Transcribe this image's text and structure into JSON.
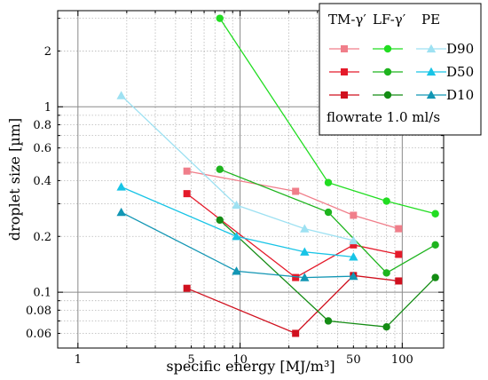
{
  "chart_data": {
    "type": "line",
    "xlabel": "specific energy [MJ/m³]",
    "ylabel": "droplet size [µm]",
    "x_scale": "log",
    "y_scale": "log",
    "xlim": [
      0.75,
      180
    ],
    "ylim": [
      0.05,
      3.3
    ],
    "grid": true,
    "x_major_ticks": [
      1,
      10,
      100
    ],
    "x_major_tick_labels": [
      "1",
      "10",
      "100"
    ],
    "x_minor_ticks": [
      2,
      3,
      4,
      5,
      6,
      7,
      8,
      9,
      20,
      30,
      40,
      50,
      60,
      70,
      80,
      90
    ],
    "x_minor_tick_labels": [
      "",
      "",
      "",
      "5",
      "",
      "",
      "",
      "",
      "",
      "",
      "",
      "50",
      "",
      "",
      "",
      ""
    ],
    "y_major_ticks": [
      0.1,
      1
    ],
    "y_minor_ticks": [
      0.06,
      0.08,
      0.2,
      0.4,
      0.6,
      0.8,
      2
    ],
    "y_tick_values": [
      0.06,
      0.08,
      0.1,
      0.2,
      0.4,
      0.6,
      0.8,
      1,
      2
    ],
    "y_tick_labels": [
      "0.06",
      "0.08",
      "0.1",
      "0.2",
      "0.4",
      "0.6",
      "0.8",
      "1",
      "2"
    ],
    "legend": {
      "placement": "top-right",
      "column_headers": [
        "TM-γ′",
        "LF-γ′",
        "PE"
      ],
      "row_labels": [
        "D90",
        "D50",
        "D10"
      ],
      "note": "flowrate 1.0 ml/s"
    },
    "series": [
      {
        "group": "TM-γ′",
        "stat": "D90",
        "color": "#f07e8a",
        "marker": "square",
        "x": [
          4.7,
          22,
          50,
          95
        ],
        "y": [
          0.45,
          0.35,
          0.26,
          0.22
        ]
      },
      {
        "group": "TM-γ′",
        "stat": "D50",
        "color": "#e41a2a",
        "marker": "square",
        "x": [
          4.7,
          22,
          50,
          95
        ],
        "y": [
          0.34,
          0.12,
          0.18,
          0.16
        ]
      },
      {
        "group": "TM-γ′",
        "stat": "D10",
        "color": "#d0101e",
        "marker": "square",
        "x": [
          4.7,
          22,
          50,
          95
        ],
        "y": [
          0.105,
          0.06,
          0.123,
          0.115
        ]
      },
      {
        "group": "LF-γ′",
        "stat": "D90",
        "color": "#22dd22",
        "marker": "circle",
        "x": [
          7.5,
          35,
          80,
          160
        ],
        "y": [
          3.0,
          0.39,
          0.31,
          0.265
        ]
      },
      {
        "group": "LF-γ′",
        "stat": "D50",
        "color": "#1eb41e",
        "marker": "circle",
        "x": [
          7.5,
          35,
          80,
          160
        ],
        "y": [
          0.46,
          0.27,
          0.127,
          0.18
        ]
      },
      {
        "group": "LF-γ′",
        "stat": "D10",
        "color": "#148c14",
        "marker": "circle",
        "x": [
          7.5,
          35,
          80,
          160
        ],
        "y": [
          0.245,
          0.07,
          0.065,
          0.12
        ]
      },
      {
        "group": "PE",
        "stat": "D90",
        "color": "#9ee1f2",
        "marker": "triangle",
        "x": [
          1.85,
          9.5,
          25,
          50
        ],
        "y": [
          1.15,
          0.295,
          0.22,
          0.19
        ]
      },
      {
        "group": "PE",
        "stat": "D50",
        "color": "#18c4e6",
        "marker": "triangle",
        "x": [
          1.85,
          9.5,
          25,
          50
        ],
        "y": [
          0.37,
          0.2,
          0.165,
          0.155
        ]
      },
      {
        "group": "PE",
        "stat": "D10",
        "color": "#1296b4",
        "marker": "triangle",
        "x": [
          1.85,
          9.5,
          25,
          50
        ],
        "y": [
          0.27,
          0.13,
          0.12,
          0.122
        ]
      }
    ]
  }
}
